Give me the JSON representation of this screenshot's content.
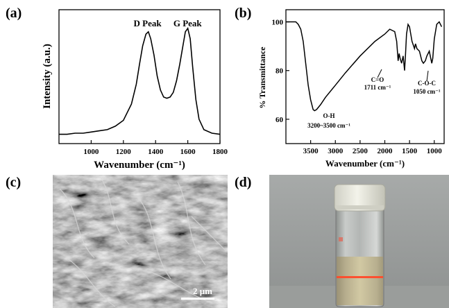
{
  "panels": {
    "a": {
      "label": "(a)"
    },
    "b": {
      "label": "(b)"
    },
    "c": {
      "label": "(c)",
      "scale_bar": "2 μm"
    },
    "d": {
      "label": "(d)"
    }
  },
  "chart_data": [
    {
      "type": "line",
      "panel": "(a)",
      "xlabel": "Wavenumber (cm⁻¹)",
      "ylabel": "Intensity (a.u.)",
      "xlim": [
        800,
        1800
      ],
      "xticks": [
        "1000",
        "1200",
        "1400",
        "1600",
        "1800"
      ],
      "yticks": [],
      "annotations": [
        {
          "text": "D Peak",
          "x": 1350
        },
        {
          "text": "G Peak",
          "x": 1590
        }
      ],
      "series": [
        {
          "x": [
            800,
            850,
            900,
            950,
            1000,
            1050,
            1100,
            1150,
            1200,
            1250,
            1280,
            1300,
            1320,
            1340,
            1355,
            1370,
            1390,
            1410,
            1430,
            1450,
            1470,
            1490,
            1510,
            1530,
            1550,
            1570,
            1585,
            1600,
            1615,
            1630,
            1650,
            1670,
            1700,
            1750,
            1800
          ],
          "y": [
            0.02,
            0.02,
            0.03,
            0.03,
            0.04,
            0.05,
            0.06,
            0.09,
            0.14,
            0.28,
            0.45,
            0.62,
            0.78,
            0.88,
            0.9,
            0.84,
            0.7,
            0.52,
            0.4,
            0.34,
            0.33,
            0.34,
            0.38,
            0.48,
            0.62,
            0.78,
            0.9,
            0.93,
            0.84,
            0.6,
            0.32,
            0.15,
            0.06,
            0.03,
            0.02
          ]
        }
      ]
    },
    {
      "type": "line",
      "panel": "(b)",
      "xlabel": "Wavenumber (cm⁻¹)",
      "ylabel": "% Transmittance",
      "xlim": [
        4000,
        800
      ],
      "ylim": [
        50,
        105
      ],
      "xticks": [
        "3500",
        "3000",
        "2500",
        "2000",
        "1500",
        "1000"
      ],
      "yticks": [
        "60",
        "80",
        "100"
      ],
      "annotations": [
        {
          "text": "O-H",
          "text2": "3200~3500 cm⁻¹"
        },
        {
          "text": "C=O",
          "text2": "1711 cm⁻¹"
        },
        {
          "text": "C-O-C",
          "text2": "1050 cm⁻¹"
        }
      ],
      "series": [
        {
          "x": [
            3990,
            3900,
            3800,
            3750,
            3700,
            3650,
            3600,
            3550,
            3500,
            3450,
            3420,
            3380,
            3300,
            3200,
            3000,
            2800,
            2500,
            2200,
            2000,
            1900,
            1800,
            1760,
            1730,
            1711,
            1690,
            1660,
            1630,
            1600,
            1580,
            1560,
            1530,
            1500,
            1450,
            1400,
            1380,
            1350,
            1300,
            1250,
            1220,
            1180,
            1150,
            1100,
            1080,
            1050,
            1030,
            1000,
            950,
            900,
            850
          ],
          "y": [
            100,
            100,
            100,
            99,
            97,
            92,
            83,
            74,
            68,
            64,
            63.5,
            64,
            66,
            69,
            74,
            79,
            86,
            92,
            95,
            97,
            96,
            92,
            84,
            87,
            85,
            83,
            86,
            80,
            87,
            95,
            99,
            98,
            92,
            89,
            91,
            89,
            88,
            84,
            83,
            84,
            86,
            88,
            86,
            83,
            85,
            93,
            99,
            100,
            98
          ]
        }
      ]
    }
  ]
}
